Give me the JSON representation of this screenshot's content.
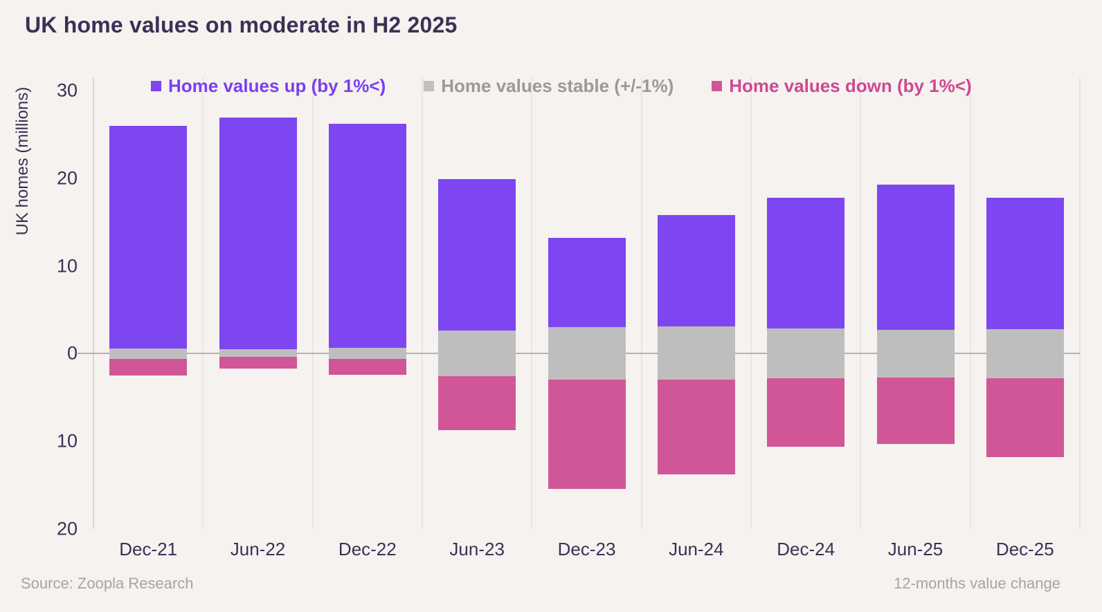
{
  "title": "UK home values on moderate in H2 2025",
  "footer": {
    "source": "Source: Zoopla Research",
    "note": "12-months value change"
  },
  "colors": {
    "background": "#f5f2f0",
    "up": "#7d46f0",
    "stable": "#bfbebe",
    "down": "#d15697",
    "title_text": "#3b3155",
    "axis_text": "#3b3155",
    "muted_text": "#a7a4a1",
    "gridline": "#e8e5e2",
    "zero_line": "#b3b0ae"
  },
  "chart_data": {
    "type": "bar",
    "stacked": true,
    "diverging": true,
    "title": "UK home values on moderate in H2 2025",
    "xlabel": "",
    "ylabel": "UK homes (millions)",
    "ylim": [
      -20,
      31.5
    ],
    "grid": "vertical-only",
    "legend_position": "top-inside",
    "yticks": [
      {
        "value": 30,
        "label": "30"
      },
      {
        "value": 20,
        "label": "20"
      },
      {
        "value": 10,
        "label": "10"
      },
      {
        "value": 0,
        "label": "0"
      },
      {
        "value": -10,
        "label": "10"
      },
      {
        "value": -20,
        "label": "20"
      }
    ],
    "legend": [
      {
        "label": "Home values up (by 1%<)",
        "color": "#7d46f0",
        "text_color": "#7a3ff0"
      },
      {
        "label": "Home values stable (+/-1%)",
        "color": "#c2c1c1",
        "text_color": "#9a9a99"
      },
      {
        "label": "Home values down (by 1%<)",
        "color": "#d15697",
        "text_color": "#cf4890"
      }
    ],
    "categories": [
      "Dec-21",
      "Jun-22",
      "Dec-22",
      "Jun-23",
      "Dec-23",
      "Jun-24",
      "Dec-24",
      "Jun-25",
      "Dec-25"
    ],
    "series": [
      {
        "name": "Home values up (by 1%<)",
        "values": [
          25.4,
          26.4,
          25.55,
          17.3,
          10.2,
          12.7,
          14.9,
          16.55,
          15.0
        ]
      },
      {
        "name": "Home values stable (+/-1%)",
        "values": [
          1.2,
          0.85,
          1.25,
          5.2,
          6.0,
          6.1,
          5.7,
          5.5,
          5.6
        ]
      },
      {
        "name": "Home values down (by 1%<)",
        "values": [
          1.9,
          1.35,
          1.85,
          6.1,
          12.4,
          10.8,
          7.8,
          7.55,
          9.0
        ]
      }
    ],
    "segment_boundaries": [
      {
        "category": "Dec-21",
        "up_top": 26.0,
        "stable_top": 0.6,
        "stable_bottom": -0.6,
        "down_bottom": -2.5
      },
      {
        "category": "Jun-22",
        "up_top": 26.9,
        "stable_top": 0.5,
        "stable_bottom": -0.35,
        "down_bottom": -1.7
      },
      {
        "category": "Dec-22",
        "up_top": 26.2,
        "stable_top": 0.65,
        "stable_bottom": -0.6,
        "down_bottom": -2.45
      },
      {
        "category": "Jun-23",
        "up_top": 19.9,
        "stable_top": 2.6,
        "stable_bottom": -2.6,
        "down_bottom": -8.7
      },
      {
        "category": "Dec-23",
        "up_top": 13.2,
        "stable_top": 3.0,
        "stable_bottom": -3.0,
        "down_bottom": -15.4
      },
      {
        "category": "Jun-24",
        "up_top": 15.8,
        "stable_top": 3.1,
        "stable_bottom": -3.0,
        "down_bottom": -13.8
      },
      {
        "category": "Dec-24",
        "up_top": 17.8,
        "stable_top": 2.9,
        "stable_bottom": -2.8,
        "down_bottom": -10.6
      },
      {
        "category": "Jun-25",
        "up_top": 19.3,
        "stable_top": 2.75,
        "stable_bottom": -2.75,
        "down_bottom": -10.3
      },
      {
        "category": "Dec-25",
        "up_top": 17.8,
        "stable_top": 2.8,
        "stable_bottom": -2.8,
        "down_bottom": -11.8
      }
    ],
    "note": "stable segment straddles the zero line"
  }
}
